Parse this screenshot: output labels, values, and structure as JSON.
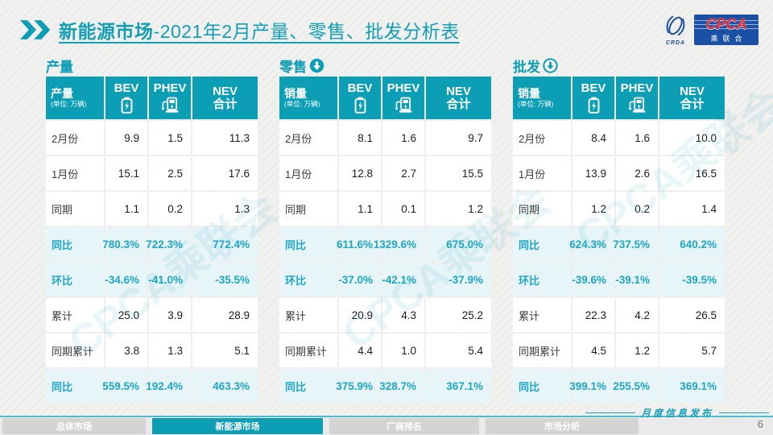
{
  "slide": {
    "title": {
      "bold": "新能源市场",
      "rest": "-2021年2月产量、零售、批发分析表"
    },
    "footer_brand": "月度信息发布",
    "page_number": "6",
    "watermark_text": "CPCA乘联会"
  },
  "logo": {
    "crda": "CRDA",
    "cpca": "CPCA",
    "subtitle": "乘联合"
  },
  "colors": {
    "teal_header": "#0c9eb5",
    "teal_text": "#1ea6c4",
    "highlight_row_bg": "#e7f4f8",
    "logo_blue": "#1b51a4",
    "cpca_red": "#e8262d"
  },
  "nav_tabs": [
    {
      "label": "总体市场",
      "active": false
    },
    {
      "label": "新能源市场",
      "active": true
    },
    {
      "label": "厂商排名",
      "active": false
    },
    {
      "label": "市场分析",
      "active": false
    }
  ],
  "tables": [
    {
      "section_title": "产量",
      "arrow_icon": null,
      "row_header_label": "产量",
      "unit": "(单位: 万辆)",
      "columns": [
        {
          "name": "BEV",
          "icon": "battery-icon"
        },
        {
          "name": "PHEV",
          "icon": "charging-station-icon"
        },
        {
          "name": "NEV",
          "sub": "合计"
        }
      ],
      "rows": [
        {
          "label": "2月份",
          "values": [
            "9.9",
            "1.5",
            "11.3"
          ],
          "highlight": false
        },
        {
          "label": "1月份",
          "values": [
            "15.1",
            "2.5",
            "17.6"
          ],
          "highlight": false
        },
        {
          "label": "同期",
          "values": [
            "1.1",
            "0.2",
            "1.3"
          ],
          "highlight": false
        },
        {
          "label": "同比",
          "values": [
            "780.3%",
            "722.3%",
            "772.4%"
          ],
          "highlight": true
        },
        {
          "label": "环比",
          "values": [
            "-34.6%",
            "-41.0%",
            "-35.5%"
          ],
          "highlight": true
        },
        {
          "label": "累计",
          "values": [
            "25.0",
            "3.9",
            "28.9"
          ],
          "highlight": false
        },
        {
          "label": "同期累计",
          "values": [
            "3.8",
            "1.3",
            "5.1"
          ],
          "highlight": false
        },
        {
          "label": "同比",
          "values": [
            "559.5%",
            "192.4%",
            "463.3%"
          ],
          "highlight": true
        }
      ]
    },
    {
      "section_title": "零售",
      "arrow_icon": "down-arrow-circle-solid-icon",
      "row_header_label": "销量",
      "unit": "(单位: 万辆)",
      "columns": [
        {
          "name": "BEV",
          "icon": "battery-icon"
        },
        {
          "name": "PHEV",
          "icon": "charging-station-icon"
        },
        {
          "name": "NEV",
          "sub": "合计"
        }
      ],
      "rows": [
        {
          "label": "2月份",
          "values": [
            "8.1",
            "1.6",
            "9.7"
          ],
          "highlight": false
        },
        {
          "label": "1月份",
          "values": [
            "12.8",
            "2.7",
            "15.5"
          ],
          "highlight": false
        },
        {
          "label": "同期",
          "values": [
            "1.1",
            "0.1",
            "1.2"
          ],
          "highlight": false
        },
        {
          "label": "同比",
          "values": [
            "611.6%",
            "1329.6%",
            "675.0%"
          ],
          "highlight": true
        },
        {
          "label": "环比",
          "values": [
            "-37.0%",
            "-42.1%",
            "-37.9%"
          ],
          "highlight": true
        },
        {
          "label": "累计",
          "values": [
            "20.9",
            "4.3",
            "25.2"
          ],
          "highlight": false
        },
        {
          "label": "同期累计",
          "values": [
            "4.4",
            "1.0",
            "5.4"
          ],
          "highlight": false
        },
        {
          "label": "同比",
          "values": [
            "375.9%",
            "328.7%",
            "367.1%"
          ],
          "highlight": true
        }
      ]
    },
    {
      "section_title": "批发",
      "arrow_icon": "down-arrow-circle-outline-icon",
      "row_header_label": "销量",
      "unit": "(单位: 万辆)",
      "columns": [
        {
          "name": "BEV",
          "icon": "battery-icon"
        },
        {
          "name": "PHEV",
          "icon": "charging-station-icon"
        },
        {
          "name": "NEV",
          "sub": "合计"
        }
      ],
      "rows": [
        {
          "label": "2月份",
          "values": [
            "8.4",
            "1.6",
            "10.0"
          ],
          "highlight": false
        },
        {
          "label": "1月份",
          "values": [
            "13.9",
            "2.6",
            "16.5"
          ],
          "highlight": false
        },
        {
          "label": "同期",
          "values": [
            "1.2",
            "0.2",
            "1.4"
          ],
          "highlight": false
        },
        {
          "label": "同比",
          "values": [
            "624.3%",
            "737.5%",
            "640.2%"
          ],
          "highlight": true
        },
        {
          "label": "环比",
          "values": [
            "-39.6%",
            "-39.1%",
            "-39.5%"
          ],
          "highlight": true
        },
        {
          "label": "累计",
          "values": [
            "22.3",
            "4.2",
            "26.5"
          ],
          "highlight": false
        },
        {
          "label": "同期累计",
          "values": [
            "4.5",
            "1.2",
            "5.7"
          ],
          "highlight": false
        },
        {
          "label": "同比",
          "values": [
            "399.1%",
            "255.5%",
            "369.1%"
          ],
          "highlight": true
        }
      ]
    }
  ]
}
